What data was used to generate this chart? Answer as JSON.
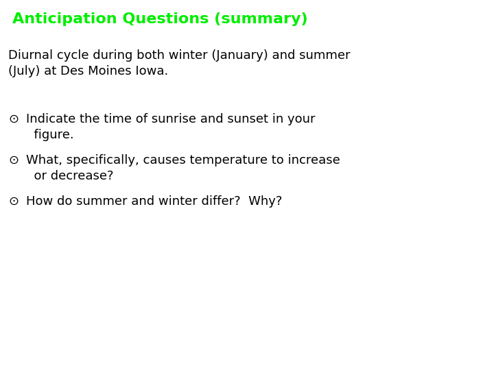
{
  "title": "Anticipation Questions (summary)",
  "title_color": "#00ee00",
  "title_fontsize": 16,
  "background_color": "#ffffff",
  "subtitle_line1": "Diurnal cycle during both winter (January) and summer",
  "subtitle_line2": "(July) at Des Moines Iowa.",
  "subtitle_color": "#000000",
  "subtitle_fontsize": 13,
  "bullet_symbol": "⊙",
  "bullet_fontsize": 13,
  "bullets": [
    [
      "Indicate the time of sunrise and sunset in your",
      "  figure."
    ],
    [
      "What, specifically, causes temperature to increase",
      "  or decrease?"
    ],
    [
      "How do summer and winter differ?  Why?"
    ]
  ],
  "text_color": "#000000",
  "font_family": "DejaVu Sans",
  "fig_width": 7.2,
  "fig_height": 5.4,
  "dpi": 100
}
